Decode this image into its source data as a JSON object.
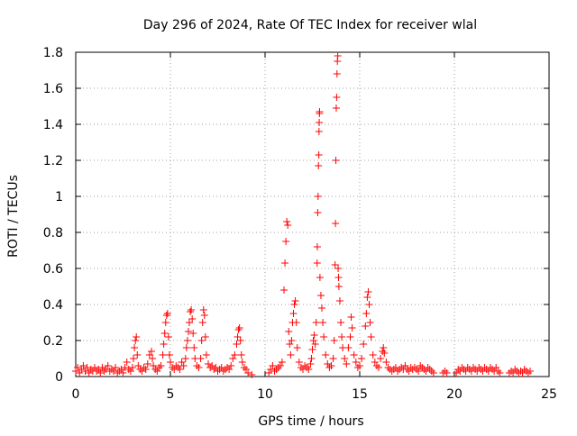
{
  "chart_data": {
    "type": "scatter",
    "title": "Day 296 of 2024, Rate Of TEC Index for receiver wlal",
    "xlabel": "GPS time / hours",
    "ylabel": "ROTI / TECUs",
    "xlim": [
      0,
      25
    ],
    "ylim": [
      0,
      1.8
    ],
    "xticks": [
      "0",
      "5",
      "10",
      "15",
      "20",
      "25"
    ],
    "yticks": [
      "0",
      "0.2",
      "0.4",
      "0.6",
      "0.8",
      "1",
      "1.2",
      "1.4",
      "1.6",
      "1.8"
    ],
    "grid": true,
    "marker": "+",
    "color": "#ff0000",
    "series": [
      {
        "points": [
          [
            0.0,
            0.03
          ],
          [
            0.1,
            0.05
          ],
          [
            0.2,
            0.02
          ],
          [
            0.3,
            0.04
          ],
          [
            0.4,
            0.06
          ],
          [
            0.5,
            0.03
          ],
          [
            0.6,
            0.05
          ],
          [
            0.7,
            0.02
          ],
          [
            0.8,
            0.04
          ],
          [
            0.9,
            0.03
          ],
          [
            1.0,
            0.05
          ],
          [
            1.1,
            0.03
          ],
          [
            1.2,
            0.04
          ],
          [
            1.3,
            0.02
          ],
          [
            1.4,
            0.05
          ],
          [
            1.5,
            0.03
          ],
          [
            1.6,
            0.04
          ],
          [
            1.7,
            0.06
          ],
          [
            1.8,
            0.03
          ],
          [
            1.9,
            0.04
          ],
          [
            2.0,
            0.03
          ],
          [
            2.1,
            0.05
          ],
          [
            2.2,
            0.02
          ],
          [
            2.3,
            0.03
          ],
          [
            2.4,
            0.04
          ],
          [
            2.5,
            0.02
          ],
          [
            2.6,
            0.05
          ],
          [
            2.7,
            0.08
          ],
          [
            2.8,
            0.04
          ],
          [
            2.9,
            0.03
          ],
          [
            3.0,
            0.05
          ],
          [
            3.05,
            0.1
          ],
          [
            3.1,
            0.16
          ],
          [
            3.15,
            0.2
          ],
          [
            3.2,
            0.22
          ],
          [
            3.25,
            0.12
          ],
          [
            3.3,
            0.06
          ],
          [
            3.4,
            0.04
          ],
          [
            3.5,
            0.03
          ],
          [
            3.6,
            0.05
          ],
          [
            3.7,
            0.04
          ],
          [
            3.8,
            0.07
          ],
          [
            3.9,
            0.12
          ],
          [
            4.0,
            0.14
          ],
          [
            4.05,
            0.1
          ],
          [
            4.1,
            0.06
          ],
          [
            4.2,
            0.04
          ],
          [
            4.3,
            0.03
          ],
          [
            4.4,
            0.05
          ],
          [
            4.5,
            0.06
          ],
          [
            4.6,
            0.12
          ],
          [
            4.65,
            0.18
          ],
          [
            4.7,
            0.24
          ],
          [
            4.75,
            0.3
          ],
          [
            4.8,
            0.34
          ],
          [
            4.85,
            0.35
          ],
          [
            4.9,
            0.22
          ],
          [
            4.95,
            0.12
          ],
          [
            5.0,
            0.08
          ],
          [
            5.1,
            0.05
          ],
          [
            5.2,
            0.04
          ],
          [
            5.3,
            0.06
          ],
          [
            5.4,
            0.05
          ],
          [
            5.5,
            0.04
          ],
          [
            5.6,
            0.08
          ],
          [
            5.7,
            0.06
          ],
          [
            5.8,
            0.1
          ],
          [
            5.85,
            0.16
          ],
          [
            5.9,
            0.2
          ],
          [
            5.95,
            0.25
          ],
          [
            6.0,
            0.3
          ],
          [
            6.05,
            0.36
          ],
          [
            6.1,
            0.37
          ],
          [
            6.15,
            0.32
          ],
          [
            6.2,
            0.24
          ],
          [
            6.25,
            0.16
          ],
          [
            6.3,
            0.1
          ],
          [
            6.4,
            0.06
          ],
          [
            6.5,
            0.05
          ],
          [
            6.6,
            0.1
          ],
          [
            6.65,
            0.2
          ],
          [
            6.7,
            0.3
          ],
          [
            6.75,
            0.37
          ],
          [
            6.8,
            0.34
          ],
          [
            6.85,
            0.22
          ],
          [
            6.9,
            0.12
          ],
          [
            7.0,
            0.07
          ],
          [
            7.1,
            0.05
          ],
          [
            7.2,
            0.06
          ],
          [
            7.3,
            0.04
          ],
          [
            7.4,
            0.05
          ],
          [
            7.5,
            0.03
          ],
          [
            7.6,
            0.04
          ],
          [
            7.7,
            0.05
          ],
          [
            7.8,
            0.03
          ],
          [
            7.9,
            0.04
          ],
          [
            8.0,
            0.05
          ],
          [
            8.1,
            0.04
          ],
          [
            8.2,
            0.06
          ],
          [
            8.3,
            0.1
          ],
          [
            8.4,
            0.12
          ],
          [
            8.5,
            0.18
          ],
          [
            8.55,
            0.22
          ],
          [
            8.6,
            0.26
          ],
          [
            8.65,
            0.27
          ],
          [
            8.7,
            0.2
          ],
          [
            8.75,
            0.12
          ],
          [
            8.8,
            0.08
          ],
          [
            8.9,
            0.05
          ],
          [
            9.0,
            0.04
          ],
          [
            9.1,
            0.02
          ],
          [
            9.3,
            0.01
          ],
          [
            10.2,
            0.02
          ],
          [
            10.3,
            0.04
          ],
          [
            10.4,
            0.06
          ],
          [
            10.5,
            0.03
          ],
          [
            10.6,
            0.04
          ],
          [
            10.7,
            0.05
          ],
          [
            10.8,
            0.06
          ],
          [
            10.9,
            0.08
          ],
          [
            11.0,
            0.48
          ],
          [
            11.05,
            0.63
          ],
          [
            11.1,
            0.75
          ],
          [
            11.15,
            0.86
          ],
          [
            11.2,
            0.84
          ],
          [
            11.25,
            0.25
          ],
          [
            11.3,
            0.18
          ],
          [
            11.35,
            0.12
          ],
          [
            11.4,
            0.2
          ],
          [
            11.45,
            0.3
          ],
          [
            11.5,
            0.35
          ],
          [
            11.55,
            0.4
          ],
          [
            11.6,
            0.42
          ],
          [
            11.65,
            0.3
          ],
          [
            11.7,
            0.16
          ],
          [
            11.8,
            0.08
          ],
          [
            11.9,
            0.05
          ],
          [
            12.0,
            0.04
          ],
          [
            12.1,
            0.06
          ],
          [
            12.2,
            0.05
          ],
          [
            12.3,
            0.04
          ],
          [
            12.4,
            0.07
          ],
          [
            12.45,
            0.1
          ],
          [
            12.5,
            0.15
          ],
          [
            12.55,
            0.2
          ],
          [
            12.6,
            0.23
          ],
          [
            12.65,
            0.18
          ],
          [
            12.7,
            0.3
          ],
          [
            12.75,
            0.63
          ],
          [
            12.76,
            0.72
          ],
          [
            12.78,
            0.91
          ],
          [
            12.8,
            1.0
          ],
          [
            12.82,
            1.17
          ],
          [
            12.84,
            1.23
          ],
          [
            12.85,
            1.36
          ],
          [
            12.86,
            1.41
          ],
          [
            12.87,
            1.46
          ],
          [
            12.88,
            1.47
          ],
          [
            12.9,
            0.55
          ],
          [
            12.95,
            0.45
          ],
          [
            13.0,
            0.38
          ],
          [
            13.05,
            0.3
          ],
          [
            13.1,
            0.22
          ],
          [
            13.2,
            0.12
          ],
          [
            13.3,
            0.07
          ],
          [
            13.4,
            0.05
          ],
          [
            13.5,
            0.06
          ],
          [
            13.6,
            0.1
          ],
          [
            13.65,
            0.2
          ],
          [
            13.7,
            0.62
          ],
          [
            13.72,
            0.85
          ],
          [
            13.74,
            1.2
          ],
          [
            13.76,
            1.49
          ],
          [
            13.78,
            1.55
          ],
          [
            13.8,
            1.68
          ],
          [
            13.82,
            1.75
          ],
          [
            13.84,
            1.78
          ],
          [
            13.86,
            0.6
          ],
          [
            13.88,
            0.55
          ],
          [
            13.9,
            0.5
          ],
          [
            13.95,
            0.42
          ],
          [
            14.0,
            0.3
          ],
          [
            14.05,
            0.22
          ],
          [
            14.1,
            0.16
          ],
          [
            14.2,
            0.1
          ],
          [
            14.3,
            0.07
          ],
          [
            14.4,
            0.16
          ],
          [
            14.5,
            0.22
          ],
          [
            14.55,
            0.33
          ],
          [
            14.6,
            0.27
          ],
          [
            14.7,
            0.12
          ],
          [
            14.8,
            0.08
          ],
          [
            14.9,
            0.05
          ],
          [
            15.0,
            0.06
          ],
          [
            15.1,
            0.1
          ],
          [
            15.2,
            0.18
          ],
          [
            15.3,
            0.28
          ],
          [
            15.35,
            0.35
          ],
          [
            15.4,
            0.44
          ],
          [
            15.45,
            0.47
          ],
          [
            15.5,
            0.4
          ],
          [
            15.55,
            0.3
          ],
          [
            15.6,
            0.22
          ],
          [
            15.7,
            0.12
          ],
          [
            15.8,
            0.08
          ],
          [
            15.9,
            0.06
          ],
          [
            16.0,
            0.05
          ],
          [
            16.1,
            0.1
          ],
          [
            16.2,
            0.14
          ],
          [
            16.25,
            0.16
          ],
          [
            16.3,
            0.13
          ],
          [
            16.4,
            0.08
          ],
          [
            16.5,
            0.05
          ],
          [
            16.6,
            0.04
          ],
          [
            16.7,
            0.03
          ],
          [
            16.8,
            0.04
          ],
          [
            16.9,
            0.05
          ],
          [
            17.0,
            0.03
          ],
          [
            17.1,
            0.04
          ],
          [
            17.2,
            0.05
          ],
          [
            17.3,
            0.04
          ],
          [
            17.4,
            0.06
          ],
          [
            17.5,
            0.04
          ],
          [
            17.6,
            0.03
          ],
          [
            17.7,
            0.05
          ],
          [
            17.8,
            0.04
          ],
          [
            17.9,
            0.05
          ],
          [
            18.0,
            0.04
          ],
          [
            18.1,
            0.03
          ],
          [
            18.2,
            0.06
          ],
          [
            18.3,
            0.05
          ],
          [
            18.4,
            0.04
          ],
          [
            18.5,
            0.03
          ],
          [
            18.6,
            0.05
          ],
          [
            18.7,
            0.04
          ],
          [
            18.8,
            0.03
          ],
          [
            18.9,
            0.02
          ],
          [
            19.4,
            0.02
          ],
          [
            19.5,
            0.03
          ],
          [
            19.6,
            0.02
          ],
          [
            20.1,
            0.02
          ],
          [
            20.2,
            0.04
          ],
          [
            20.3,
            0.03
          ],
          [
            20.4,
            0.05
          ],
          [
            20.5,
            0.04
          ],
          [
            20.6,
            0.03
          ],
          [
            20.7,
            0.05
          ],
          [
            20.8,
            0.04
          ],
          [
            20.9,
            0.03
          ],
          [
            21.0,
            0.05
          ],
          [
            21.1,
            0.04
          ],
          [
            21.2,
            0.03
          ],
          [
            21.3,
            0.05
          ],
          [
            21.4,
            0.04
          ],
          [
            21.5,
            0.03
          ],
          [
            21.6,
            0.05
          ],
          [
            21.7,
            0.04
          ],
          [
            21.8,
            0.03
          ],
          [
            21.9,
            0.05
          ],
          [
            22.0,
            0.04
          ],
          [
            22.1,
            0.03
          ],
          [
            22.2,
            0.05
          ],
          [
            22.3,
            0.03
          ],
          [
            22.4,
            0.02
          ],
          [
            22.9,
            0.02
          ],
          [
            23.0,
            0.03
          ],
          [
            23.1,
            0.02
          ],
          [
            23.2,
            0.04
          ],
          [
            23.3,
            0.03
          ],
          [
            23.4,
            0.02
          ],
          [
            23.5,
            0.03
          ],
          [
            23.6,
            0.02
          ],
          [
            23.7,
            0.04
          ],
          [
            23.8,
            0.03
          ],
          [
            23.9,
            0.02
          ],
          [
            24.0,
            0.03
          ]
        ]
      }
    ]
  }
}
